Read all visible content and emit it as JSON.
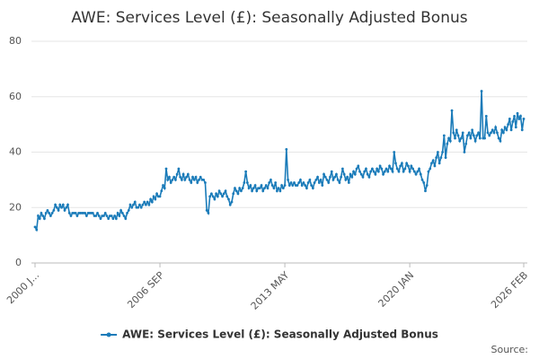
{
  "chart_data": {
    "type": "line",
    "title": "AWE: Services Level (£): Seasonally Adjusted Bonus",
    "source": "Source:",
    "categories": [
      "2000 J...",
      null,
      null,
      null,
      null,
      null,
      null,
      null,
      null,
      null,
      null,
      null,
      null,
      null,
      null,
      null,
      null,
      null,
      null,
      null,
      null,
      null,
      null,
      null,
      null,
      null,
      null,
      null,
      null,
      null,
      null,
      null,
      null,
      null,
      null,
      null,
      null,
      null,
      null,
      null,
      null,
      null,
      null,
      null,
      null,
      null,
      null,
      null,
      null,
      null,
      null,
      null,
      null,
      null,
      null,
      null,
      null,
      null,
      null,
      null,
      null,
      null,
      null,
      null,
      null,
      null,
      null,
      null,
      null,
      null,
      null,
      null,
      null,
      null,
      null,
      null,
      null,
      null,
      null,
      null,
      "2006 SEP",
      null,
      null,
      null,
      null,
      null,
      null,
      null,
      null,
      null,
      null,
      null,
      null,
      null,
      null,
      null,
      null,
      null,
      null,
      null,
      null,
      null,
      null,
      null,
      null,
      null,
      null,
      null,
      null,
      null,
      null,
      null,
      null,
      null,
      null,
      null,
      null,
      null,
      null,
      null,
      null,
      null,
      null,
      null,
      null,
      null,
      null,
      null,
      null,
      null,
      null,
      null,
      null,
      null,
      null,
      null,
      null,
      null,
      null,
      null,
      null,
      null,
      null,
      null,
      null,
      null,
      null,
      null,
      null,
      null,
      null,
      null,
      null,
      null,
      null,
      null,
      null,
      null,
      null,
      null,
      "2013 MAY",
      null,
      null,
      null,
      null,
      null,
      null,
      null,
      null,
      null,
      null,
      null,
      null,
      null,
      null,
      null,
      null,
      null,
      null,
      null,
      null,
      null,
      null,
      null,
      null,
      null,
      null,
      null,
      null,
      null,
      null,
      null,
      null,
      null,
      null,
      null,
      null,
      null,
      null,
      null,
      null,
      null,
      null,
      null,
      null,
      null,
      null,
      null,
      null,
      null,
      null,
      null,
      null,
      null,
      null,
      null,
      null,
      null,
      null,
      null,
      null,
      null,
      null,
      null,
      null,
      null,
      null,
      null,
      null,
      null,
      null,
      null,
      null,
      null,
      null,
      null,
      null,
      null,
      null,
      null,
      "2020 JAN",
      null,
      null,
      null,
      null,
      null,
      null,
      null,
      null,
      null,
      null,
      null,
      null,
      null,
      null,
      null,
      null,
      null,
      null,
      null,
      null,
      null,
      null,
      null,
      null,
      null,
      null,
      null,
      null,
      null,
      null,
      null,
      null,
      null,
      null,
      null,
      null,
      null,
      null,
      null,
      null,
      null,
      null,
      null,
      null,
      null,
      null,
      null,
      null,
      null,
      null,
      null,
      null,
      null,
      null,
      null,
      null,
      null,
      null,
      null,
      null,
      null,
      null,
      null,
      null,
      null,
      null,
      null,
      null,
      null,
      null,
      null,
      null,
      "2026 FEB"
    ],
    "series": [
      {
        "name": "AWE: Services Level (£): Seasonally Adjusted Bonus",
        "color": "#1a7bb9",
        "values": [
          13,
          12,
          17,
          16,
          18,
          17,
          16,
          18,
          19,
          18,
          17,
          18,
          19,
          21,
          20,
          19,
          21,
          20,
          21,
          19,
          20,
          21,
          18,
          17,
          18,
          18,
          18,
          17,
          18,
          18,
          18,
          18,
          18,
          17,
          18,
          18,
          18,
          18,
          17,
          17,
          18,
          17,
          16,
          17,
          17,
          18,
          17,
          16,
          17,
          17,
          16,
          17,
          16,
          18,
          17,
          19,
          18,
          17,
          16,
          18,
          19,
          21,
          20,
          21,
          22,
          20,
          20,
          21,
          20,
          21,
          22,
          21,
          22,
          21,
          23,
          22,
          24,
          23,
          25,
          24,
          24,
          26,
          28,
          27,
          34,
          30,
          31,
          29,
          30,
          31,
          30,
          32,
          34,
          31,
          30,
          32,
          30,
          31,
          32,
          30,
          29,
          31,
          30,
          31,
          29,
          30,
          31,
          30,
          30,
          29,
          19,
          18,
          24,
          25,
          24,
          23,
          25,
          24,
          26,
          25,
          24,
          25,
          26,
          24,
          23,
          21,
          22,
          25,
          27,
          26,
          25,
          27,
          26,
          27,
          29,
          33,
          29,
          27,
          28,
          26,
          27,
          28,
          26,
          27,
          27,
          28,
          26,
          27,
          28,
          27,
          29,
          30,
          28,
          27,
          29,
          26,
          27,
          26,
          28,
          27,
          28,
          41,
          30,
          28,
          29,
          28,
          29,
          28,
          28,
          29,
          30,
          28,
          29,
          28,
          27,
          29,
          30,
          28,
          27,
          29,
          30,
          31,
          29,
          30,
          28,
          32,
          31,
          30,
          29,
          31,
          33,
          30,
          31,
          32,
          30,
          29,
          31,
          34,
          32,
          30,
          31,
          29,
          32,
          31,
          33,
          32,
          34,
          35,
          33,
          32,
          31,
          33,
          34,
          32,
          31,
          33,
          34,
          33,
          32,
          34,
          33,
          35,
          34,
          32,
          33,
          34,
          33,
          35,
          34,
          33,
          40,
          36,
          34,
          33,
          35,
          36,
          33,
          34,
          36,
          35,
          33,
          35,
          34,
          33,
          32,
          33,
          34,
          32,
          30,
          29,
          26,
          28,
          33,
          34,
          36,
          37,
          35,
          38,
          40,
          36,
          38,
          40,
          46,
          38,
          43,
          45,
          44,
          55,
          47,
          45,
          48,
          46,
          44,
          45,
          47,
          40,
          43,
          46,
          47,
          45,
          48,
          46,
          44,
          46,
          47,
          45,
          62,
          45,
          45,
          53,
          47,
          46,
          47,
          48,
          47,
          49,
          47,
          45,
          44,
          48,
          47,
          49,
          48,
          50,
          52,
          48,
          51,
          53,
          49,
          54,
          52,
          53,
          48,
          52
        ]
      }
    ],
    "ylim": [
      0,
      80
    ],
    "yticks": [
      0,
      20,
      40,
      60,
      80
    ],
    "grid": true,
    "legend": "bottom"
  }
}
